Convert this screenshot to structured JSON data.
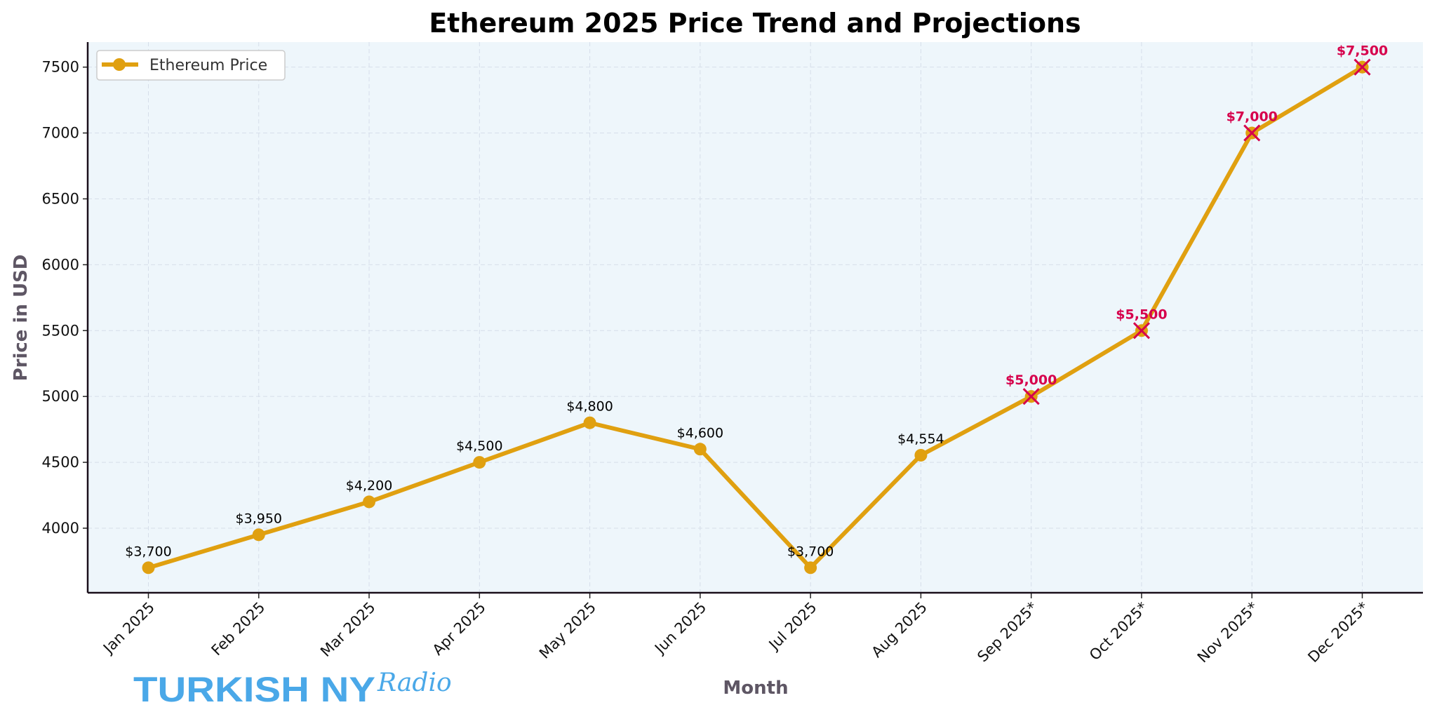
{
  "chart_data": {
    "type": "line",
    "title": "Ethereum 2025 Price Trend and Projections",
    "xlabel": "Month",
    "ylabel": "Price in USD",
    "categories": [
      "Jan 2025",
      "Feb 2025",
      "Mar 2025",
      "Apr 2025",
      "May 2025",
      "Jun 2025",
      "Jul 2025",
      "Aug 2025",
      "Sep 2025*",
      "Oct 2025*",
      "Nov 2025*",
      "Dec 2025*"
    ],
    "series": [
      {
        "name": "Ethereum Price",
        "values": [
          3700,
          3950,
          4200,
          4500,
          4800,
          4600,
          3700,
          4554,
          5000,
          5500,
          7000,
          7500
        ],
        "color": "#e0a010"
      }
    ],
    "data_labels": [
      "$3,700",
      "$3,950",
      "$4,200",
      "$4,500",
      "$4,800",
      "$4,600",
      "$3,700",
      "$4,554",
      "$5,000",
      "$5,500",
      "$7,000",
      "$7,500"
    ],
    "projected": [
      false,
      false,
      false,
      false,
      false,
      false,
      false,
      false,
      true,
      true,
      true,
      true
    ],
    "projection_color": "#d6004c",
    "ylim": [
      3510,
      7690
    ],
    "yticks": [
      4000,
      4500,
      5000,
      5500,
      6000,
      6500,
      7000,
      7500
    ],
    "grid": true,
    "legend_position": "top-left",
    "plot_background": "#eef6fb"
  },
  "watermark": {
    "text": "TURKISH NY",
    "script": "Radio",
    "color": "#4aa8e8"
  }
}
